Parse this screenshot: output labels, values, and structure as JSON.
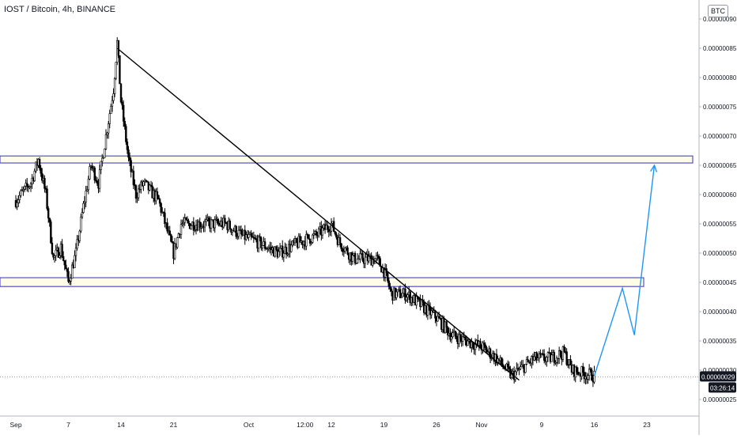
{
  "header": {
    "title": "IOST / Bitcoin, 4h, BINANCE",
    "currency": "BTC"
  },
  "colors": {
    "background": "#ffffff",
    "candle_up": "#ffffff",
    "candle_down": "#000000",
    "candle_border": "#000000",
    "zone_fill": "#fffde7",
    "zone_border": "#3030c8",
    "trendline": "#000000",
    "projection": "#2196f3",
    "axis_text": "#131722",
    "price_label_bg": "#131722",
    "price_label_text": "#ffffff"
  },
  "chart_data": {
    "type": "candlestick",
    "x_tick_labels": [
      "Sep",
      "7",
      "14",
      "21",
      "Oct",
      "12:00",
      "12",
      "19",
      "26",
      "Nov",
      "9",
      "16",
      "23"
    ],
    "y_tick_labels": [
      "0.00000090",
      "0.00000085",
      "0.00000080",
      "0.00000075",
      "0.00000070",
      "0.00000065",
      "0.00000060",
      "0.00000055",
      "0.00000050",
      "0.00000045",
      "0.00000040",
      "0.00000035",
      "0.00000030",
      "0.00000025"
    ],
    "ylim": [
      2.2e-07,
      9.2e-07
    ],
    "price_path": [
      [
        "2020-08-31",
        5.9e-07
      ],
      [
        "2020-09-02",
        6.2e-07
      ],
      [
        "2020-09-03",
        6.6e-07
      ],
      [
        "2020-09-04",
        6e-07
      ],
      [
        "2020-09-05",
        4.9e-07
      ],
      [
        "2020-09-06",
        5.1e-07
      ],
      [
        "2020-09-07",
        4.5e-07
      ],
      [
        "2020-09-08",
        5e-07
      ],
      [
        "2020-09-09",
        5.8e-07
      ],
      [
        "2020-09-10",
        6.5e-07
      ],
      [
        "2020-09-11",
        6.2e-07
      ],
      [
        "2020-09-12",
        7e-07
      ],
      [
        "2020-09-13",
        7.8e-07
      ],
      [
        "2020-09-13T12:00",
        8.6e-07
      ],
      [
        "2020-09-14",
        7.6e-07
      ],
      [
        "2020-09-15",
        6.6e-07
      ],
      [
        "2020-09-16",
        6e-07
      ],
      [
        "2020-09-17",
        6.2e-07
      ],
      [
        "2020-09-19",
        5.9e-07
      ],
      [
        "2020-09-21",
        5e-07
      ],
      [
        "2020-09-22",
        5.5e-07
      ],
      [
        "2020-09-25",
        5.5e-07
      ],
      [
        "2020-09-28",
        5.5e-07
      ],
      [
        "2020-09-30",
        5.3e-07
      ],
      [
        "2020-10-02",
        5.2e-07
      ],
      [
        "2020-10-05",
        5e-07
      ],
      [
        "2020-10-08",
        5.2e-07
      ],
      [
        "2020-10-10",
        5.3e-07
      ],
      [
        "2020-10-12",
        5.5e-07
      ],
      [
        "2020-10-13",
        5.2e-07
      ],
      [
        "2020-10-15",
        4.9e-07
      ],
      [
        "2020-10-18",
        4.9e-07
      ],
      [
        "2020-10-19",
        4.7e-07
      ],
      [
        "2020-10-20",
        4.3e-07
      ],
      [
        "2020-10-22",
        4.3e-07
      ],
      [
        "2020-10-24",
        4.1e-07
      ],
      [
        "2020-10-26",
        3.9e-07
      ],
      [
        "2020-10-28",
        3.6e-07
      ],
      [
        "2020-10-30",
        3.5e-07
      ],
      [
        "2020-11-01",
        3.4e-07
      ],
      [
        "2020-11-03",
        3.2e-07
      ],
      [
        "2020-11-05",
        2.9e-07
      ],
      [
        "2020-11-06",
        3e-07
      ],
      [
        "2020-11-08",
        3.2e-07
      ],
      [
        "2020-11-10",
        3.2e-07
      ],
      [
        "2020-11-12",
        3.3e-07
      ],
      [
        "2020-11-13",
        3e-07
      ],
      [
        "2020-11-16",
        2.9e-07
      ]
    ],
    "last_price": "0.00000029",
    "countdown": "03:26:14",
    "resistance_zone": {
      "from": 6.54e-07,
      "to": 6.66e-07
    },
    "support_zone": {
      "from": 4.43e-07,
      "to": 4.58e-07
    },
    "trendline": [
      [
        "2020-09-13T12:00",
        8.5e-07
      ],
      [
        "2020-11-06",
        2.83e-07
      ]
    ],
    "projection": [
      [
        "2020-11-16",
        2.9e-07
      ],
      [
        "2020-11-19T18:00",
        4.4e-07
      ],
      [
        "2020-11-21T08:00",
        3.6e-07
      ],
      [
        "2020-11-24T00:00",
        6.5e-07
      ]
    ]
  }
}
